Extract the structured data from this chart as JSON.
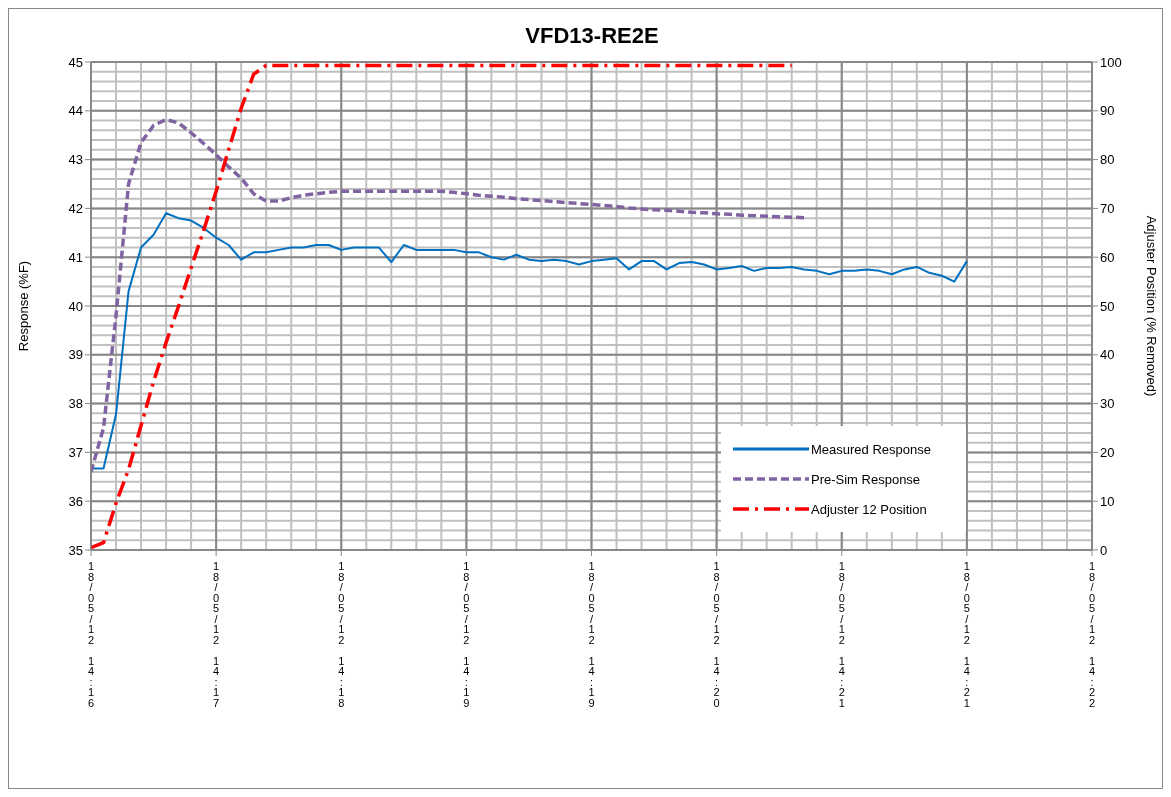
{
  "chart_data": {
    "type": "line",
    "title": "VFD13-RE2E",
    "ylabel": "Response (%F)",
    "y2label": "Adjuster Position (% Removed)",
    "categories": [
      "18/05/12 14:16",
      null,
      null,
      null,
      null,
      null,
      null,
      null,
      null,
      null,
      "18/05/12 14:17",
      null,
      null,
      null,
      null,
      null,
      null,
      null,
      null,
      null,
      "18/05/12 14:18",
      null,
      null,
      null,
      null,
      null,
      null,
      null,
      null,
      null,
      "18/05/12 14:19",
      null,
      null,
      null,
      null,
      null,
      null,
      null,
      null,
      null,
      "18/05/12 14:19",
      null,
      null,
      null,
      null,
      null,
      null,
      null,
      null,
      null,
      "18/05/12 14:20",
      null,
      null,
      null,
      null,
      null,
      null,
      null,
      null,
      null,
      "18/05/12 14:21",
      null,
      null,
      null,
      null,
      null,
      null,
      null,
      null,
      null,
      "18/05/12 14:21",
      null,
      null,
      null,
      null,
      null,
      null,
      null,
      null,
      null,
      "18/05/12 14:22"
    ],
    "series": [
      {
        "name": "Measured Response",
        "color": "#0070c0",
        "line_style": "solid",
        "values": [
          36.67,
          36.67,
          37.78,
          40.3,
          41.2,
          41.46,
          41.9,
          41.8,
          41.75,
          41.6,
          41.4,
          41.25,
          40.95,
          41.1,
          41.1,
          41.15,
          41.2,
          41.2,
          41.25,
          41.25,
          41.15,
          41.2,
          41.2,
          41.2,
          40.9,
          41.25,
          41.15,
          41.15,
          41.15,
          41.15,
          41.1,
          41.1,
          41.0,
          40.95,
          41.05,
          40.95,
          40.92,
          40.95,
          40.92,
          40.85,
          40.92,
          40.95,
          40.98,
          40.75,
          40.92,
          40.92,
          40.75,
          40.88,
          40.9,
          40.85,
          40.75,
          40.78,
          40.82,
          40.72,
          40.78,
          40.78,
          40.8,
          40.75,
          40.72,
          40.65,
          40.72,
          40.72,
          40.75,
          40.72,
          40.65,
          40.75,
          40.8,
          40.68,
          40.62,
          40.5,
          40.92,
          null,
          null,
          null,
          null,
          null,
          null,
          null,
          null,
          null,
          null
        ]
      },
      {
        "name": "Pre-Sim Response",
        "color": "#8064a2",
        "line_style": "dashed",
        "values": [
          36.6,
          37.5,
          39.8,
          42.5,
          43.35,
          43.7,
          43.82,
          43.75,
          43.55,
          43.33,
          43.1,
          42.85,
          42.62,
          42.3,
          42.15,
          42.15,
          42.22,
          42.27,
          42.3,
          42.33,
          42.35,
          42.35,
          42.35,
          42.35,
          42.35,
          42.35,
          42.35,
          42.35,
          42.35,
          42.33,
          42.3,
          42.27,
          42.25,
          42.23,
          42.2,
          42.18,
          42.16,
          42.14,
          42.12,
          42.1,
          42.08,
          42.06,
          42.04,
          42.01,
          41.99,
          41.97,
          41.96,
          41.94,
          41.92,
          41.91,
          41.89,
          41.88,
          41.86,
          41.85,
          41.84,
          41.83,
          41.82,
          41.81,
          null,
          null,
          null,
          null,
          null,
          null,
          null,
          null,
          null,
          null,
          null,
          null,
          null,
          null,
          null,
          null,
          null,
          null,
          null,
          null,
          null,
          null,
          null
        ]
      },
      {
        "name": "Adjuster 12 Position",
        "color": "#ff0000",
        "line_style": "dashdot",
        "axis": "y2",
        "values": [
          0.5,
          1.5,
          9.6,
          16.5,
          25.5,
          34.5,
          42.5,
          50,
          57.8,
          65.5,
          73.5,
          82,
          90.5,
          97.5,
          99.3,
          99.3,
          99.3,
          99.3,
          99.3,
          99.3,
          99.3,
          99.3,
          99.3,
          99.3,
          99.3,
          99.3,
          99.3,
          99.3,
          99.3,
          99.3,
          99.3,
          99.3,
          99.3,
          99.3,
          99.3,
          99.3,
          99.3,
          99.3,
          99.3,
          99.3,
          99.3,
          99.3,
          99.3,
          99.3,
          99.3,
          99.3,
          99.3,
          99.3,
          99.3,
          99.3,
          99.3,
          99.3,
          99.3,
          99.3,
          99.3,
          99.3,
          99.3,
          null,
          null,
          null,
          null,
          null,
          null,
          null,
          null,
          null,
          null,
          null,
          null,
          null,
          null,
          null,
          null,
          null,
          null,
          null,
          null,
          null,
          null,
          null,
          null
        ]
      }
    ],
    "ylim": [
      35,
      45
    ],
    "yticks": [
      35,
      36,
      37,
      38,
      39,
      40,
      41,
      42,
      43,
      44,
      45
    ],
    "y2lim": [
      0,
      100
    ],
    "y2ticks": [
      0,
      10,
      20,
      30,
      40,
      50,
      60,
      70,
      80,
      90,
      100
    ],
    "grid": true,
    "legend": "right",
    "marker": "none"
  }
}
